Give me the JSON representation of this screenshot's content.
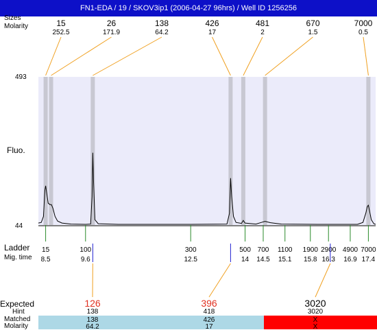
{
  "header": {
    "title": "FN1-EDA / 19 / SKOV3ip1 (2006-04-27 96hrs) / Well ID 1256256"
  },
  "labels": {
    "fluo": "Fluo.",
    "ladder": "Ladder",
    "mig_time": "Mig. time",
    "expected": "Expected",
    "hint": "Hint",
    "matched": "Matched",
    "molarity": "Molarity",
    "top_sizes_stacked": "Sizes",
    "top_molarity": "Molarity"
  },
  "colors": {
    "title_bg": "#0d10c8",
    "plot_bg": "#ebebfa",
    "peak_band": "#c8c8d2",
    "callout_line": "#f0a020",
    "ladder_tick": "#2a8a2a",
    "expected_tick": "#2020d0",
    "expected_highlight": "#e03020",
    "matched_bg": "#add8e6",
    "unmatched_bg": "#ff0000"
  },
  "chart_data": {
    "type": "line",
    "title": "FN1-EDA / 19 / SKOV3ip1 (2006-04-27 96hrs) / Well ID 1256256",
    "ylabel": "Fluo.",
    "xlabel": "Mig. time",
    "ylim": [
      44,
      493
    ],
    "xlim": [
      8.3,
      17.6
    ],
    "y_ticks": [
      "493",
      "44"
    ],
    "peaks": [
      {
        "size": "15",
        "molarity": "252.5",
        "time": 8.5
      },
      {
        "size": "26",
        "molarity": "171.9",
        "time": 8.65
      },
      {
        "size": "138",
        "molarity": "64.2",
        "time": 9.8
      },
      {
        "size": "426",
        "molarity": "17",
        "time": 13.6
      },
      {
        "size": "481",
        "molarity": "2",
        "time": 13.95
      },
      {
        "size": "670",
        "molarity": "1.5",
        "time": 14.55
      },
      {
        "size": "7000",
        "molarity": "0.5",
        "time": 17.4
      }
    ],
    "ladder": [
      {
        "size": "15",
        "time": "8.5",
        "t": 8.5
      },
      {
        "size": "100",
        "time": "9.6",
        "t": 9.6
      },
      {
        "size": "300",
        "time": "12.5",
        "t": 12.5
      },
      {
        "size": "500",
        "time": "14",
        "t": 14.0
      },
      {
        "size": "700",
        "time": "14.5",
        "t": 14.5
      },
      {
        "size": "1100",
        "time": "15.1",
        "t": 15.1
      },
      {
        "size": "1900",
        "time": "15.8",
        "t": 15.8
      },
      {
        "size": "2900",
        "time": "16.3",
        "t": 16.3
      },
      {
        "size": "4900",
        "time": "16.9",
        "t": 16.9
      },
      {
        "size": "7000",
        "time": "17.4",
        "t": 17.4
      }
    ],
    "trace": [
      [
        8.3,
        50
      ],
      [
        8.38,
        52
      ],
      [
        8.44,
        70
      ],
      [
        8.48,
        150
      ],
      [
        8.5,
        163
      ],
      [
        8.53,
        140
      ],
      [
        8.57,
        110
      ],
      [
        8.62,
        106
      ],
      [
        8.66,
        106
      ],
      [
        8.7,
        95
      ],
      [
        8.76,
        70
      ],
      [
        8.83,
        56
      ],
      [
        8.95,
        50
      ],
      [
        9.2,
        47
      ],
      [
        9.6,
        46
      ],
      [
        9.74,
        47
      ],
      [
        9.78,
        130
      ],
      [
        9.8,
        263
      ],
      [
        9.82,
        180
      ],
      [
        9.86,
        60
      ],
      [
        9.95,
        48
      ],
      [
        10.5,
        46
      ],
      [
        12.5,
        46
      ],
      [
        13.5,
        47
      ],
      [
        13.57,
        80
      ],
      [
        13.6,
        186
      ],
      [
        13.63,
        130
      ],
      [
        13.68,
        70
      ],
      [
        13.75,
        52
      ],
      [
        13.9,
        49
      ],
      [
        13.95,
        58
      ],
      [
        14.0,
        50
      ],
      [
        14.3,
        47
      ],
      [
        14.45,
        52
      ],
      [
        14.55,
        55
      ],
      [
        14.7,
        51
      ],
      [
        15.0,
        47
      ],
      [
        16.0,
        46
      ],
      [
        17.1,
        46
      ],
      [
        17.25,
        52
      ],
      [
        17.33,
        80
      ],
      [
        17.37,
        100
      ],
      [
        17.4,
        104
      ],
      [
        17.43,
        88
      ],
      [
        17.48,
        60
      ],
      [
        17.55,
        48
      ],
      [
        17.6,
        46
      ]
    ],
    "expected": [
      {
        "value": "126",
        "hint": "138",
        "matched": "138",
        "molarity": "64.2",
        "highlight": true,
        "t": 9.8
      },
      {
        "value": "396",
        "hint": "418",
        "matched": "426",
        "molarity": "17",
        "highlight": true,
        "t": 13.6
      },
      {
        "value": "3020",
        "hint": "3020",
        "matched": "X",
        "molarity": "X",
        "highlight": false,
        "t": 16.35
      }
    ]
  }
}
